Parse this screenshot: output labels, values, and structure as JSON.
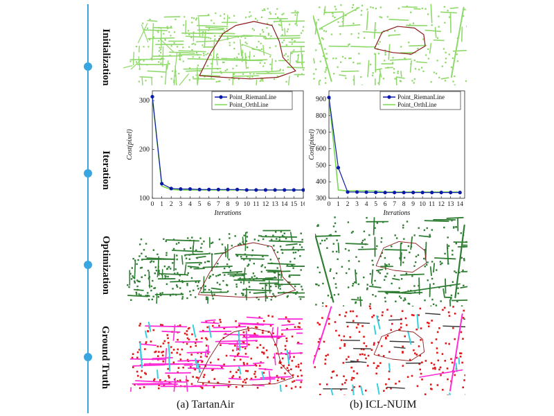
{
  "stages": [
    "Initialization",
    "Iteration",
    "Optimization",
    "Ground Truth"
  ],
  "captions": {
    "left": "(a) TartanAir",
    "right": "(b) ICL-NUIM"
  },
  "colors": {
    "timeline": "#3aa6df",
    "init_map": "#8fd96a",
    "trajectory": "#8b1a1a",
    "opt_map": "#2e7d32",
    "gt_points": "#e01818",
    "gt_lines": "#ff2bd6",
    "gt_cyan": "#35d0e0",
    "series_rieman": "#0a1aa8",
    "series_orth": "#78d84e"
  },
  "chart_data": [
    {
      "type": "line",
      "title": "",
      "xlabel": "Iterations",
      "ylabel": "Cost(pixel)",
      "xlim": [
        0,
        16
      ],
      "ylim": [
        100,
        320
      ],
      "yticks": [
        100,
        200,
        300
      ],
      "x": [
        0,
        1,
        2,
        3,
        4,
        5,
        6,
        7,
        8,
        9,
        10,
        11,
        12,
        13,
        14,
        15,
        16
      ],
      "legend_position": "top-right",
      "series": [
        {
          "name": "Point_RiemanLine",
          "marker": "circle",
          "values": [
            308,
            130,
            120,
            119,
            119,
            118,
            118,
            118,
            118,
            118,
            117,
            117,
            117,
            117,
            117,
            117,
            117
          ]
        },
        {
          "name": "Point_OrthLine",
          "marker": "none",
          "values": [
            308,
            125,
            118,
            117,
            117,
            117,
            117,
            117,
            117,
            117,
            117,
            117,
            117,
            117,
            117,
            117,
            117
          ]
        }
      ]
    },
    {
      "type": "line",
      "title": "",
      "xlabel": "Iterations",
      "ylabel": "Cost(pixel)",
      "xlim": [
        0,
        14.5
      ],
      "ylim": [
        300,
        950
      ],
      "yticks": [
        300,
        400,
        500,
        600,
        700,
        800,
        900
      ],
      "x": [
        0,
        1,
        2,
        3,
        4,
        5,
        6,
        7,
        8,
        9,
        10,
        11,
        12,
        13,
        14
      ],
      "legend_position": "top-right",
      "series": [
        {
          "name": "Point_RiemanLine",
          "marker": "circle",
          "values": [
            910,
            485,
            338,
            338,
            337,
            336,
            335,
            335,
            335,
            335,
            335,
            335,
            335,
            335,
            335
          ]
        },
        {
          "name": "Point_OrthLine",
          "marker": "none",
          "values": [
            910,
            350,
            345,
            345,
            345,
            344,
            338,
            338,
            338,
            338,
            338,
            338,
            338,
            338,
            338
          ]
        }
      ]
    }
  ]
}
